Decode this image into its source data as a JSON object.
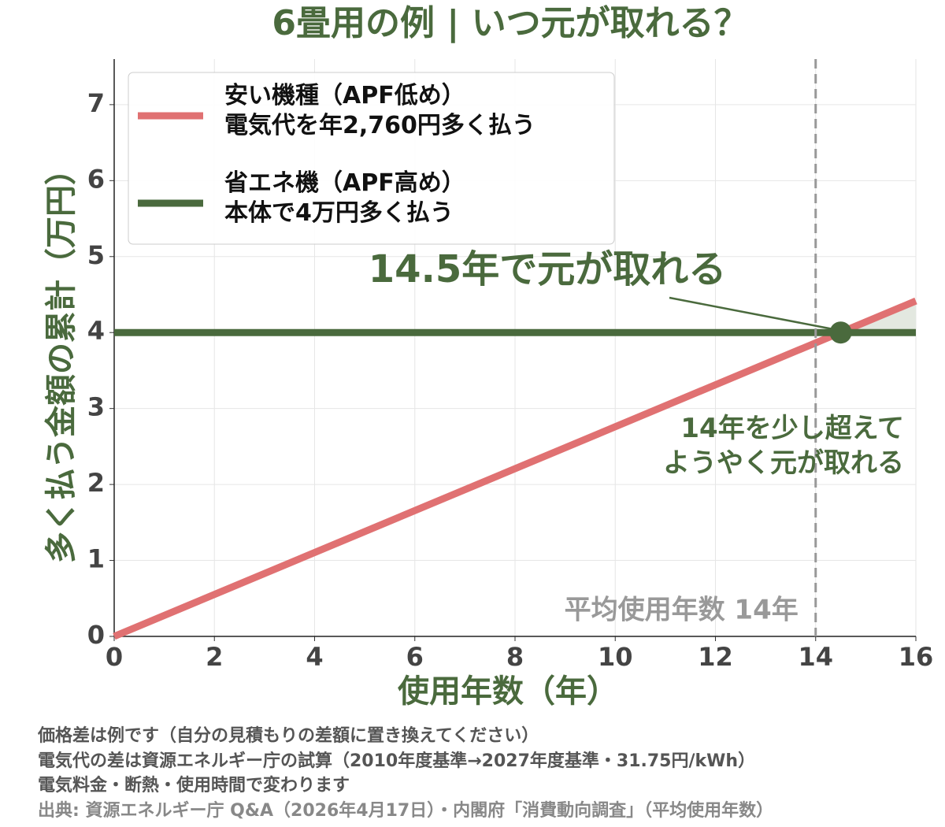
{
  "chart_data": {
    "type": "line",
    "title": "6畳用の例 | いつ元が取れる？",
    "xlabel": "使用年数（年）",
    "ylabel": "多く払う金額の累計（万円）",
    "xlim": [
      0,
      16
    ],
    "xticks": [
      0,
      2,
      4,
      6,
      8,
      10,
      12,
      14,
      16
    ],
    "ylim": [
      0,
      7.6
    ],
    "yticks": [
      0,
      1,
      2,
      3,
      4,
      5,
      6,
      7
    ],
    "grid": true,
    "legend": "upper left",
    "series": [
      {
        "name": "安い機種（APF低め）\n電気代を年2,760円多く払う",
        "color": "#e07172",
        "x": [
          0,
          16
        ],
        "values": [
          0,
          4.416
        ]
      },
      {
        "name": "省エネ機（APF高め）\n本体で4万円多く払う",
        "color": "#4a6a3d",
        "x": [
          0,
          16
        ],
        "values": [
          4,
          4
        ]
      }
    ],
    "crossover": {
      "x": 14.5,
      "y": 4,
      "label": "14.5年で元が取れる",
      "shade_color": "#e3e8e0"
    },
    "reference_line": {
      "x": 14,
      "label": "平均使用年数 14年",
      "color": "#999999"
    },
    "annotation": "14年を少し超えて\nようやく元が取れる",
    "notes": [
      "価格差は例です（自分の見積もりの差額に置き換えてください）",
      "電気代の差は資源エネルギー庁の試算（2010年度基準→2027年度基準・31.75円/kWh）",
      "電気料金・断熱・使用時間で変わります",
      "出典: 資源エネルギー庁 Q&A（2026年4月17日）・内閣府「消費動向調査」（平均使用年数）"
    ]
  }
}
